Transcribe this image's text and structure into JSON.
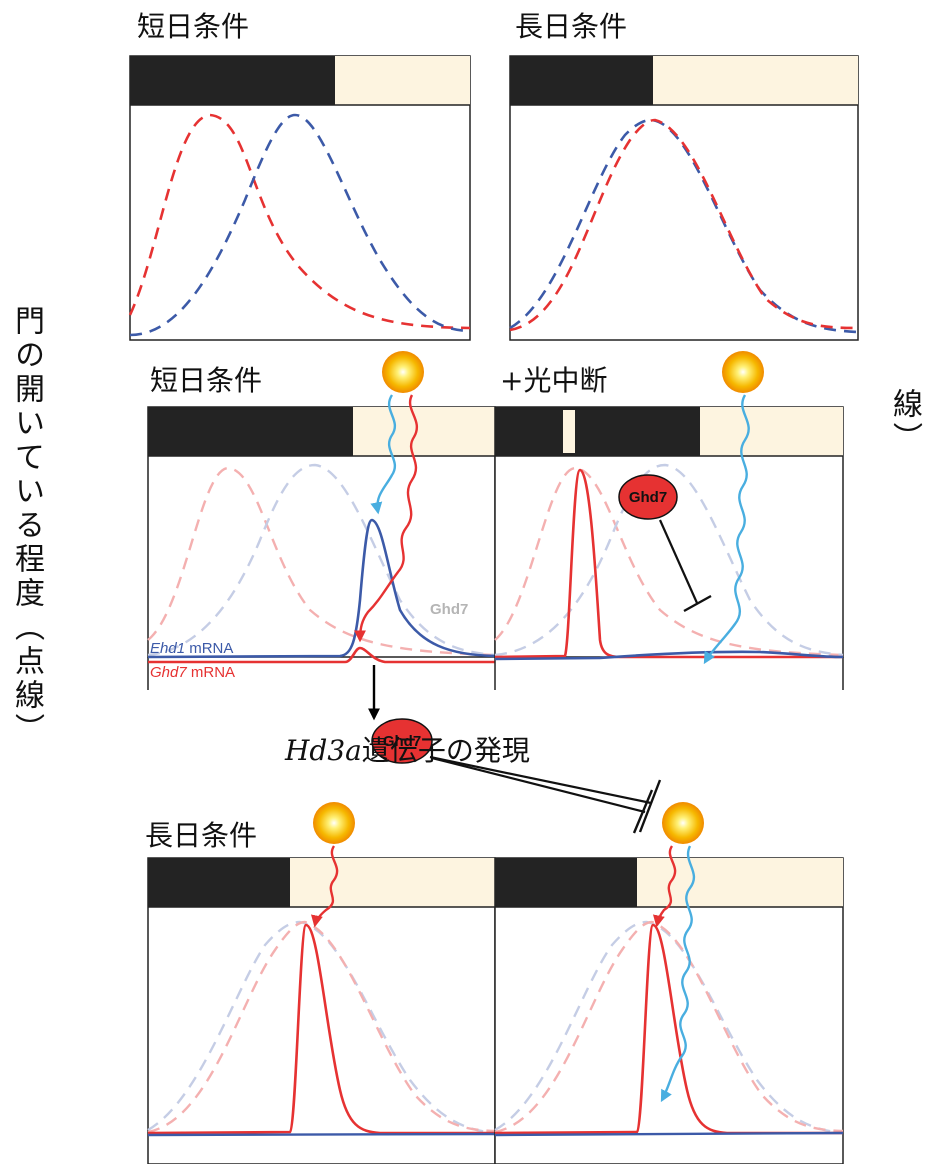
{
  "panels": {
    "short_day": "短日条件",
    "long_day": "長日条件",
    "short_day_2": "短日条件",
    "night_break": "+光中断",
    "long_day_2": "長日条件"
  },
  "axis_labels": {
    "left": "門の開いている程度（点線）",
    "right": "mRNAの発現（実線）"
  },
  "annotations": {
    "hd3a_italic": "Hd3a",
    "hd3a_rest": "遺伝子の発現",
    "ghd7_gray": "Ghd7",
    "ehd1_italic": "Ehd1",
    "ghd7_italic": "Ghd7",
    "mrna": " mRNA",
    "ghd7_badge_1": "Ghd7",
    "ghd7_badge_2": "Ghd7"
  },
  "colors": {
    "red": "#e63232",
    "blue": "#3c5aa8",
    "light_blue": "#49aee0",
    "dark": "#222222",
    "light": "#fdf4e0",
    "sun": "#f5b400"
  }
}
